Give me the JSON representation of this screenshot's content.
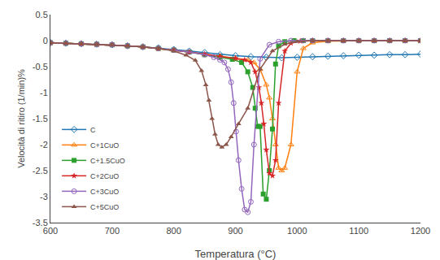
{
  "chart_data": {
    "type": "line",
    "xlabel": "Temperatura (°C)",
    "ylabel": "Velocità di ritiro (1/min)%",
    "xlim": [
      600,
      1200
    ],
    "ylim": [
      -3.5,
      0.5
    ],
    "xticks": [
      600,
      700,
      800,
      900,
      1000,
      1100,
      1200
    ],
    "yticks": [
      0.5,
      0,
      -0.5,
      -1,
      -1.5,
      -2,
      -2.5,
      -3,
      -3.5
    ],
    "grid": false,
    "legend": "lower left",
    "series": [
      {
        "name": "C",
        "marker": "diamond-open",
        "x": [
          600,
          625,
          650,
          675,
          700,
          725,
          750,
          775,
          800,
          825,
          850,
          875,
          900,
          925,
          950,
          975,
          1000,
          1025,
          1050,
          1075,
          1100,
          1125,
          1150,
          1175,
          1200
        ],
        "values": [
          -0.04,
          -0.05,
          -0.06,
          -0.07,
          -0.08,
          -0.1,
          -0.12,
          -0.14,
          -0.17,
          -0.2,
          -0.23,
          -0.27,
          -0.29,
          -0.31,
          -0.32,
          -0.33,
          -0.32,
          -0.31,
          -0.3,
          -0.29,
          -0.28,
          -0.28,
          -0.27,
          -0.27,
          -0.26
        ]
      },
      {
        "name": "C+1CuO",
        "marker": "triangle-up-open",
        "x": [
          600,
          625,
          650,
          675,
          700,
          725,
          750,
          775,
          800,
          825,
          850,
          875,
          900,
          920,
          930,
          940,
          950,
          955,
          960,
          965,
          970,
          975,
          980,
          990,
          1000,
          1010,
          1025,
          1050,
          1075,
          1100,
          1125,
          1150,
          1175,
          1200
        ],
        "values": [
          -0.04,
          -0.05,
          -0.06,
          -0.07,
          -0.08,
          -0.1,
          -0.12,
          -0.15,
          -0.18,
          -0.22,
          -0.26,
          -0.3,
          -0.34,
          -0.37,
          -0.42,
          -0.55,
          -0.85,
          -1.1,
          -1.5,
          -2.0,
          -2.45,
          -2.5,
          -2.45,
          -2.0,
          -0.6,
          -0.15,
          -0.04,
          -0.01,
          0.0,
          0.0,
          0.0,
          0.0,
          0.0,
          0.0
        ]
      },
      {
        "name": "C+1.5CuO",
        "marker": "square",
        "x": [
          600,
          625,
          650,
          675,
          700,
          725,
          750,
          775,
          800,
          825,
          850,
          875,
          895,
          910,
          920,
          928,
          932,
          936,
          940,
          945,
          950,
          955,
          960,
          965,
          970,
          980,
          995,
          1010,
          1025,
          1050,
          1075,
          1100,
          1125,
          1150,
          1175,
          1200
        ],
        "values": [
          -0.04,
          -0.05,
          -0.06,
          -0.07,
          -0.08,
          -0.1,
          -0.12,
          -0.15,
          -0.18,
          -0.22,
          -0.27,
          -0.32,
          -0.36,
          -0.42,
          -0.6,
          -0.9,
          -1.3,
          -1.65,
          -1.65,
          -2.95,
          -3.05,
          -2.5,
          -1.7,
          -0.45,
          -0.1,
          -0.02,
          0.0,
          0.0,
          0.0,
          0.0,
          0.0,
          0.0,
          0.0,
          0.0,
          0.0,
          0.0
        ]
      },
      {
        "name": "C+2CuO",
        "marker": "star",
        "x": [
          600,
          625,
          650,
          675,
          700,
          725,
          750,
          775,
          800,
          825,
          850,
          875,
          900,
          915,
          925,
          932,
          938,
          942,
          946,
          950,
          955,
          960,
          965,
          970,
          980,
          990,
          1005,
          1025,
          1050,
          1075,
          1100,
          1125,
          1150,
          1175,
          1200
        ],
        "values": [
          -0.04,
          -0.05,
          -0.06,
          -0.07,
          -0.08,
          -0.1,
          -0.12,
          -0.15,
          -0.18,
          -0.22,
          -0.26,
          -0.3,
          -0.34,
          -0.37,
          -0.42,
          -0.6,
          -0.9,
          -1.2,
          -1.6,
          -2.1,
          -2.55,
          -2.6,
          -2.3,
          -1.2,
          -0.2,
          -0.05,
          -0.01,
          0.0,
          0.0,
          0.0,
          0.0,
          0.0,
          0.0,
          0.0,
          0.0
        ]
      },
      {
        "name": "C+3CuO",
        "marker": "circle-open",
        "x": [
          600,
          625,
          650,
          675,
          700,
          725,
          750,
          775,
          800,
          825,
          850,
          865,
          875,
          882,
          888,
          893,
          897,
          901,
          905,
          910,
          915,
          920,
          925,
          930,
          940,
          955,
          970,
          990,
          1010,
          1025,
          1050,
          1075,
          1100,
          1125,
          1150,
          1175,
          1200
        ],
        "values": [
          -0.04,
          -0.05,
          -0.06,
          -0.07,
          -0.08,
          -0.1,
          -0.12,
          -0.15,
          -0.18,
          -0.22,
          -0.27,
          -0.32,
          -0.37,
          -0.42,
          -0.55,
          -0.8,
          -1.2,
          -1.75,
          -2.3,
          -2.85,
          -3.25,
          -3.3,
          -3.1,
          -2.0,
          -0.35,
          -0.08,
          -0.02,
          0.0,
          0.0,
          0.0,
          0.0,
          0.0,
          0.0,
          0.0,
          0.0,
          0.0,
          0.0
        ]
      },
      {
        "name": "C+5CuO",
        "marker": "triangle-up",
        "x": [
          600,
          625,
          650,
          675,
          700,
          725,
          750,
          775,
          800,
          820,
          835,
          845,
          852,
          857,
          862,
          867,
          872,
          878,
          885,
          893,
          905,
          920,
          940,
          960,
          980,
          1000,
          1025,
          1050,
          1075,
          1100,
          1125,
          1150,
          1175,
          1200
        ],
        "values": [
          -0.04,
          -0.05,
          -0.06,
          -0.07,
          -0.08,
          -0.1,
          -0.12,
          -0.15,
          -0.2,
          -0.28,
          -0.38,
          -0.58,
          -0.85,
          -1.15,
          -1.5,
          -1.8,
          -2.0,
          -2.05,
          -2.0,
          -1.85,
          -1.6,
          -1.3,
          -0.55,
          -0.2,
          -0.07,
          -0.02,
          0.0,
          0.0,
          0.0,
          0.0,
          0.0,
          0.0,
          0.0,
          0.0
        ]
      }
    ]
  }
}
